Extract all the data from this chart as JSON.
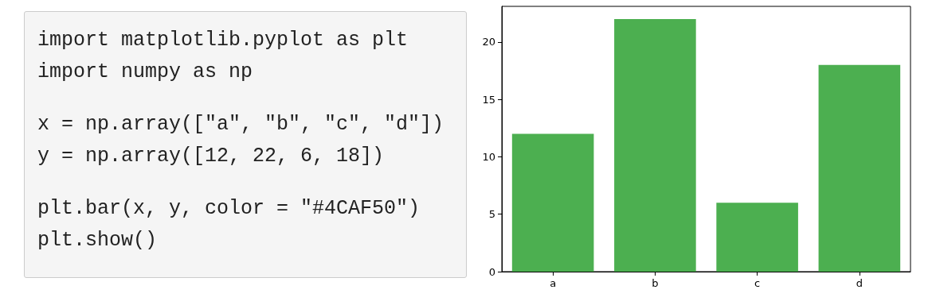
{
  "chart_data": [
    {
      "type": "other",
      "annotations": [
        "import matplotlib.pyplot as plt",
        "import numpy as np",
        "x = np.array([\"a\", \"b\", \"c\", \"d\"])",
        "y = np.array([12, 22, 6, 18])",
        "plt.bar(x, y, color = \"#4CAF50\")",
        "plt.show()"
      ]
    },
    {
      "type": "bar",
      "categories": [
        "a",
        "b",
        "c",
        "d"
      ],
      "values": [
        12,
        22,
        6,
        18
      ],
      "color": "#4caf50",
      "ylim": [
        0,
        23.1
      ],
      "yticks": [
        0,
        5,
        10,
        15,
        20
      ],
      "grid": false
    }
  ]
}
